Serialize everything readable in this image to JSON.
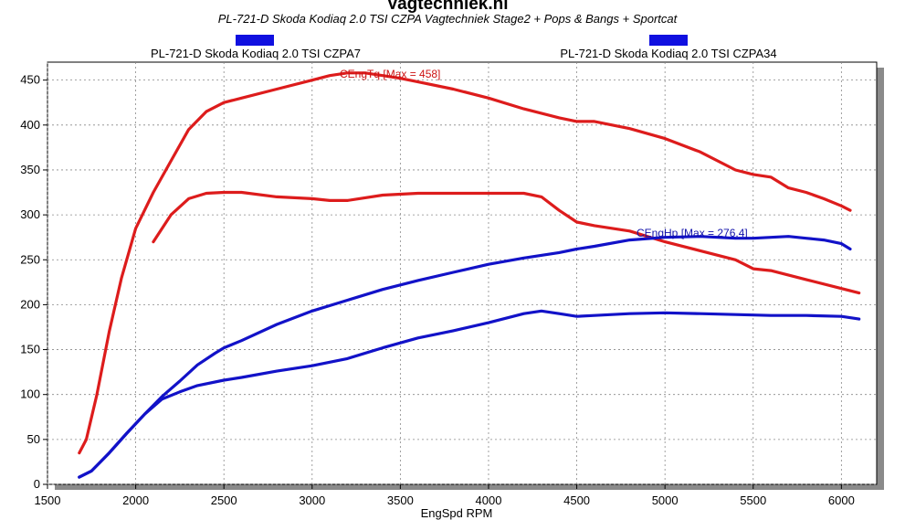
{
  "chart_data": {
    "type": "line",
    "title": "Vagtechniek.nl",
    "subtitle": "PL-721-D Skoda Kodiaq 2.0 TSI CZPA Vagtechniek Stage2 + Pops & Bangs + Sportcat",
    "xlabel": "EngSpd RPM",
    "ylabel": "",
    "xlim": [
      1500,
      6200
    ],
    "ylim": [
      0,
      470
    ],
    "xticks": [
      "1500",
      "2000",
      "2500",
      "3000",
      "3500",
      "4000",
      "4500",
      "5000",
      "5500",
      "6000"
    ],
    "yticks": [
      "0",
      "50",
      "100",
      "150",
      "200",
      "250",
      "300",
      "350",
      "400",
      "450"
    ],
    "grid": true,
    "legend_position": "top",
    "legend": [
      {
        "label": "PL-721-D Skoda Kodiaq 2.0 TSI CZPA7",
        "color": "#1010e0"
      },
      {
        "label": "PL-721-D Skoda Kodiaq 2.0 TSI CZPA34",
        "color": "#1010e0"
      }
    ],
    "annotations": [
      {
        "text": "CEngTq [Max = 458]",
        "x": 3200,
        "y": 458,
        "color": "#cc1111"
      },
      {
        "text": "CEngHp [Max = 276.4]",
        "x": 4980,
        "y": 276,
        "color": "#1111aa"
      }
    ],
    "series": [
      {
        "color": "#dd1c1c",
        "x": [
          1680,
          1720,
          1780,
          1850,
          1920,
          2000,
          2100,
          2200,
          2300,
          2400,
          2500,
          2600,
          2800,
          3000,
          3100,
          3200,
          3300,
          3400,
          3500,
          3600,
          3800,
          4000,
          4200,
          4400,
          4500,
          4600,
          4800,
          5000,
          5200,
          5400,
          5500,
          5600,
          5700,
          5800,
          5900,
          6000,
          6050
        ],
        "y": [
          35,
          50,
          100,
          170,
          230,
          285,
          325,
          360,
          395,
          415,
          425,
          430,
          440,
          450,
          455,
          458,
          458,
          455,
          452,
          448,
          440,
          430,
          418,
          408,
          404,
          404,
          396,
          385,
          370,
          350,
          345,
          342,
          330,
          325,
          318,
          310,
          305
        ]
      },
      {
        "color": "#dd1c1c",
        "x": [
          2100,
          2200,
          2300,
          2400,
          2500,
          2600,
          2800,
          3000,
          3100,
          3200,
          3400,
          3600,
          3800,
          4000,
          4200,
          4300,
          4400,
          4500,
          4600,
          4800,
          5000,
          5200,
          5400,
          5500,
          5600,
          5800,
          6000,
          6100
        ],
        "y": [
          270,
          300,
          318,
          324,
          325,
          325,
          320,
          318,
          316,
          316,
          322,
          324,
          324,
          324,
          324,
          320,
          305,
          292,
          288,
          282,
          270,
          260,
          250,
          240,
          238,
          228,
          218,
          213
        ]
      },
      {
        "color": "#1212c8",
        "x": [
          1680,
          1750,
          1850,
          1950,
          2050,
          2150,
          2250,
          2350,
          2450,
          2500,
          2600,
          2800,
          3000,
          3200,
          3400,
          3600,
          3800,
          4000,
          4200,
          4400,
          4500,
          4600,
          4800,
          5000,
          5200,
          5400,
          5500,
          5600,
          5700,
          5800,
          5900,
          6000,
          6050
        ],
        "y": [
          8,
          15,
          35,
          57,
          78,
          98,
          115,
          133,
          146,
          152,
          160,
          178,
          193,
          205,
          217,
          227,
          236,
          245,
          252,
          258,
          262,
          265,
          272,
          275,
          276,
          274,
          274,
          275,
          276,
          274,
          272,
          268,
          262
        ]
      },
      {
        "color": "#1212c8",
        "x": [
          1680,
          1750,
          1850,
          1950,
          2050,
          2150,
          2250,
          2350,
          2500,
          2600,
          2800,
          3000,
          3200,
          3400,
          3600,
          3800,
          4000,
          4200,
          4300,
          4400,
          4500,
          4600,
          4800,
          5000,
          5200,
          5400,
          5600,
          5800,
          6000,
          6100
        ],
        "y": [
          8,
          15,
          35,
          57,
          78,
          95,
          103,
          110,
          116,
          119,
          126,
          132,
          140,
          152,
          163,
          171,
          180,
          190,
          193,
          190,
          187,
          188,
          190,
          191,
          190,
          189,
          188,
          188,
          187,
          184
        ]
      }
    ]
  }
}
